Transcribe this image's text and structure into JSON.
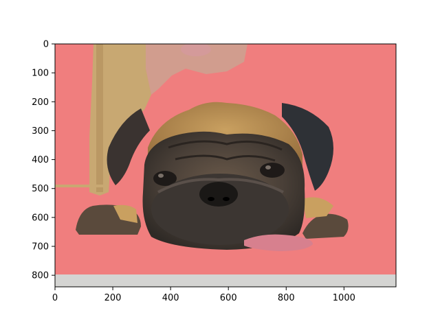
{
  "image": {
    "subject": "pug-face-icon",
    "mask_color": "#f07e7e",
    "bottom_band_color": "#d4d4d2"
  },
  "axes": {
    "x_ticks": [
      "0",
      "200",
      "400",
      "600",
      "800",
      "1000"
    ],
    "y_ticks": [
      "0",
      "100",
      "200",
      "300",
      "400",
      "500",
      "600",
      "700",
      "800"
    ],
    "x_range": [
      0,
      1180
    ],
    "y_range": [
      840,
      0
    ]
  }
}
